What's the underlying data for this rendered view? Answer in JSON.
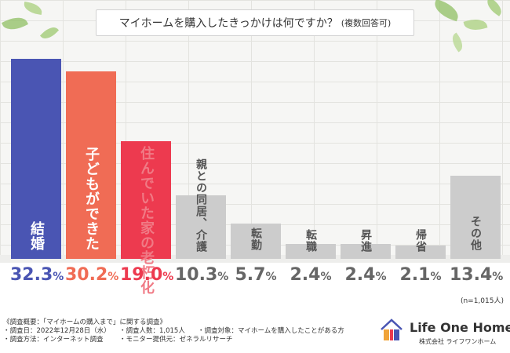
{
  "title": {
    "main": "マイホームを購入したきっかけは何ですか？",
    "sub": "(複数回答可)"
  },
  "chart_data": {
    "type": "bar",
    "title": "マイホームを購入したきっかけは何ですか？(複数回答可)",
    "categories": [
      "結婚",
      "子どもができた",
      "住んでいた家の老朽化",
      "親との同居、介護",
      "転勤",
      "転職",
      "昇進",
      "帰省",
      "その他"
    ],
    "values": [
      32.3,
      30.2,
      19.0,
      10.3,
      5.7,
      2.4,
      2.4,
      2.1,
      13.4
    ],
    "pct_labels": [
      {
        "num": "32.3",
        "unit": "%"
      },
      {
        "num": "30.2",
        "unit": "%"
      },
      {
        "num": "19.0",
        "unit": "%"
      },
      {
        "num": "10.3",
        "unit": "%"
      },
      {
        "num": "5.7",
        "unit": "%"
      },
      {
        "num": "2.4",
        "unit": "%"
      },
      {
        "num": "2.4",
        "unit": "%"
      },
      {
        "num": "2.1",
        "unit": "%"
      },
      {
        "num": "13.4",
        "unit": "%"
      }
    ],
    "colors": [
      "#4a55b3",
      "#f06c55",
      "#ed3a4f",
      "#cccccc",
      "#cccccc",
      "#cccccc",
      "#cccccc",
      "#cccccc",
      "#cccccc"
    ],
    "label_colors": [
      "#ffffff",
      "#ffffff",
      "#f07a85",
      "#555555",
      "#555555",
      "#555555",
      "#555555",
      "#555555",
      "#555555"
    ],
    "pct_colors": [
      "#4a55b3",
      "#f06c55",
      "#ed3a4f",
      "#666666",
      "#666666",
      "#666666",
      "#666666",
      "#666666",
      "#666666"
    ],
    "ylim": [
      0,
      35
    ],
    "xlabel": "",
    "ylabel": ""
  },
  "sample_note": "(n=1,015人)",
  "survey": {
    "heading": "《調査概要：「マイホームの購入まで」に関する調査》",
    "date": "・調査日：2022年12月28日（水）",
    "respondents": "・調査人数：1,015人",
    "target": "・調査対象：マイホームを購入したことがある方",
    "method": "・調査方法：インターネット調査",
    "provider": "・モニター提供元：ゼネラルリサーチ"
  },
  "brand": {
    "name": "Life One Home",
    "company": "株式会社 ライフワンホーム"
  }
}
